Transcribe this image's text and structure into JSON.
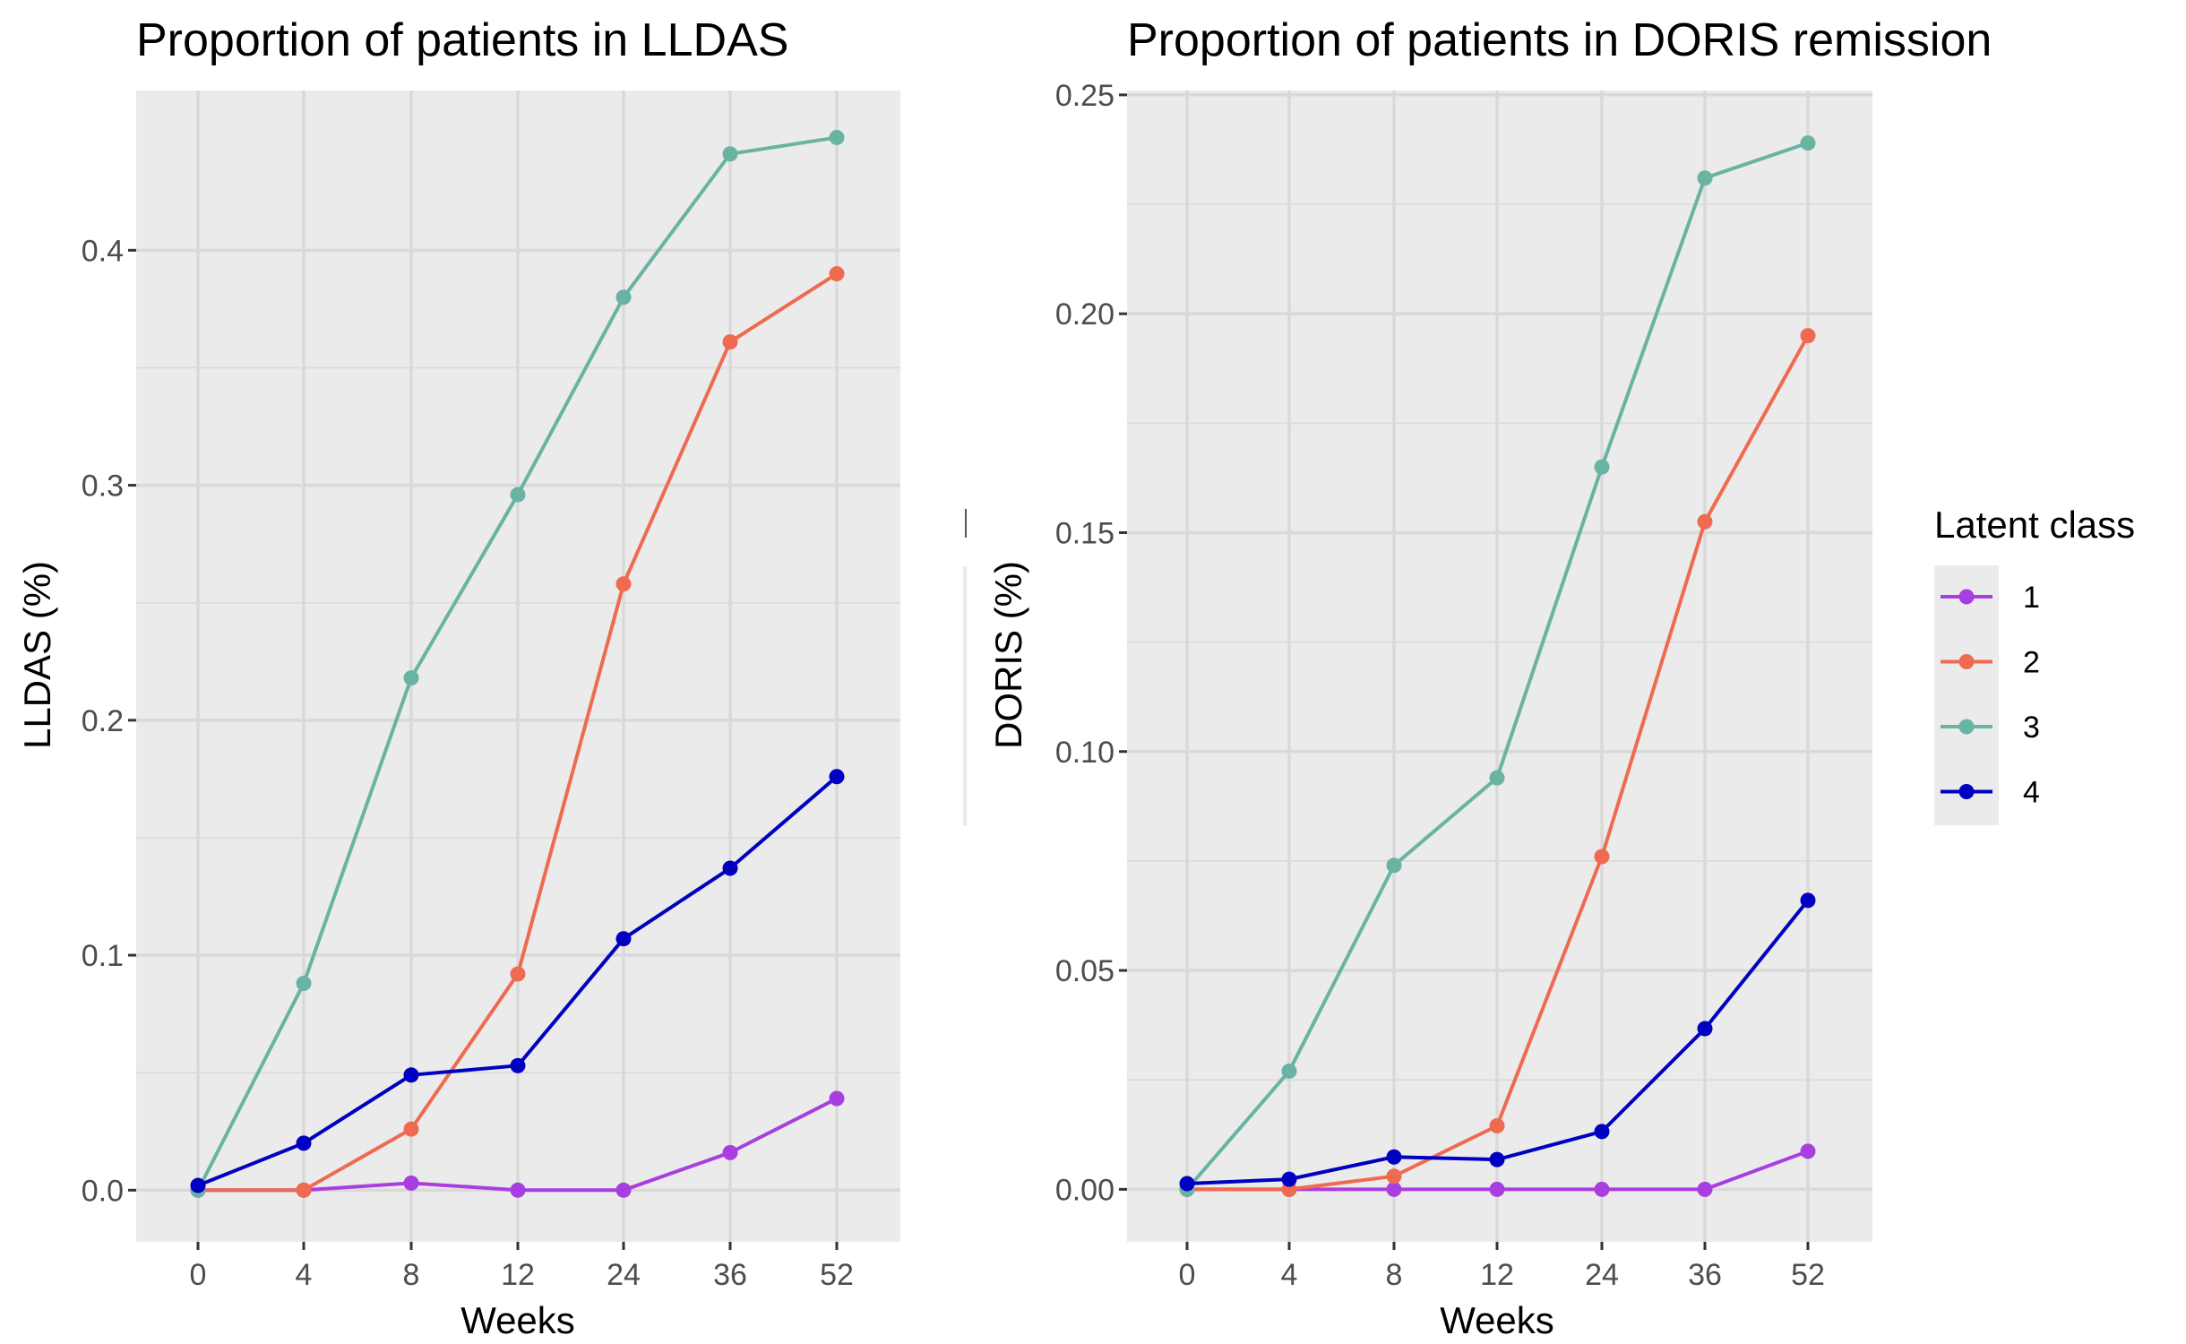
{
  "chart_data": [
    {
      "type": "line",
      "title": "Proportion of patients in LLDAS",
      "xlabel": "Weeks",
      "ylabel": "LLDAS (%)",
      "categories": [
        "0",
        "4",
        "8",
        "12",
        "24",
        "36",
        "52"
      ],
      "yticks": [
        "0.0",
        "0.1",
        "0.2",
        "0.3",
        "0.4"
      ],
      "ytick_values": [
        0,
        0.1,
        0.2,
        0.3,
        0.4
      ],
      "ylim": [
        -0.022,
        0.468
      ],
      "grid": true,
      "series": [
        {
          "name": "1",
          "values": [
            0.0,
            0.0,
            0.003,
            0.0,
            0.0,
            0.016,
            0.039
          ]
        },
        {
          "name": "2",
          "values": [
            0.0,
            0.0,
            0.026,
            0.092,
            0.258,
            0.361,
            0.39
          ]
        },
        {
          "name": "3",
          "values": [
            0.0,
            0.088,
            0.218,
            0.296,
            0.38,
            0.441,
            0.448
          ]
        },
        {
          "name": "4",
          "values": [
            0.002,
            0.02,
            0.049,
            0.053,
            0.107,
            0.137,
            0.176
          ]
        }
      ]
    },
    {
      "type": "line",
      "title": "Proportion of patients in DORIS remission",
      "xlabel": "Weeks",
      "ylabel": "DORIS (%)",
      "categories": [
        "0",
        "4",
        "8",
        "12",
        "24",
        "36",
        "52"
      ],
      "yticks": [
        "0.00",
        "0.05",
        "0.10",
        "0.15",
        "0.20",
        "0.25"
      ],
      "ytick_values": [
        0,
        0.05,
        0.1,
        0.15,
        0.2,
        0.25
      ],
      "ylim": [
        -0.012,
        0.251
      ],
      "grid": true,
      "series": [
        {
          "name": "1",
          "values": [
            0.0,
            0.0,
            0.0,
            0.0,
            0.0,
            0.0,
            0.0087
          ]
        },
        {
          "name": "2",
          "values": [
            0.0,
            0.0,
            0.003,
            0.0145,
            0.076,
            0.1525,
            0.195
          ]
        },
        {
          "name": "3",
          "values": [
            0.0,
            0.027,
            0.074,
            0.094,
            0.165,
            0.231,
            0.239
          ]
        },
        {
          "name": "4",
          "values": [
            0.0013,
            0.0023,
            0.0074,
            0.0068,
            0.0132,
            0.0367,
            0.066
          ]
        }
      ]
    }
  ],
  "legend": {
    "title": "Latent class",
    "placement": "right",
    "items": [
      {
        "label": "1",
        "color": "#A93EE0"
      },
      {
        "label": "2",
        "color": "#EE6A50"
      },
      {
        "label": "3",
        "color": "#69B3A2"
      },
      {
        "label": "4",
        "color": "#0000C0"
      }
    ]
  },
  "colors": {
    "panel_background": "#EBEBEB",
    "grid": "#D9D9D9"
  }
}
